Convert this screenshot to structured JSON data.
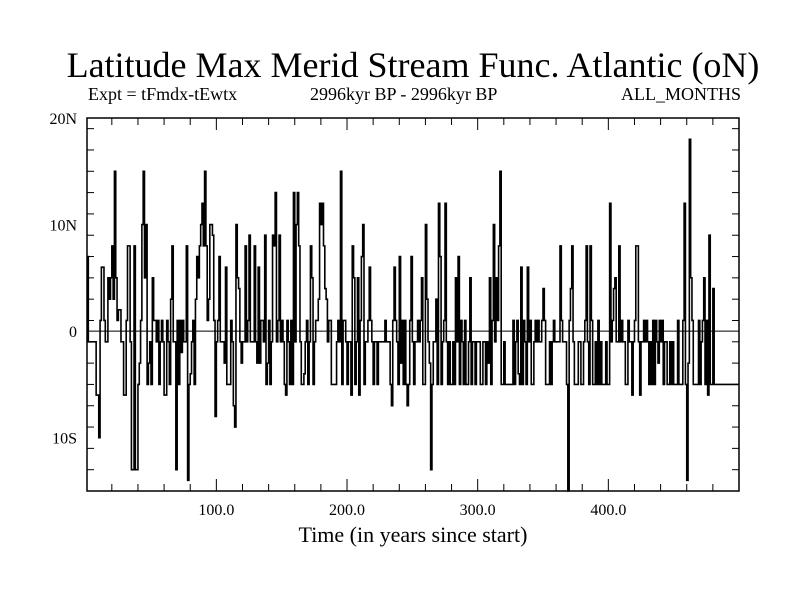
{
  "chart_data": {
    "type": "line",
    "title": "Latitude Max Merid Stream Func. Atlantic (oN)",
    "subtitle_left": "Expt = tFmdx-tEwtx",
    "subtitle_center": "2996kyr BP - 2996kyr BP",
    "subtitle_right": "ALL_MONTHS",
    "xlabel": "Time (in years since start)",
    "ylabel": "",
    "xlim": [
      1,
      500
    ],
    "ylim": [
      -15,
      20
    ],
    "x_ticks": [
      100,
      200,
      300,
      400
    ],
    "x_tick_labels": [
      "100.0",
      "200.0",
      "300.0",
      "400.0"
    ],
    "y_ticks": [
      -10,
      0,
      10,
      20
    ],
    "y_tick_labels": [
      "10S",
      "0",
      "10N",
      "20N"
    ],
    "zero_line": true,
    "grid": false,
    "step": 1,
    "series": [
      {
        "values": [
          7,
          -1,
          -1,
          -1,
          -1,
          -1,
          -1,
          -6,
          -6,
          -10,
          1,
          6,
          6,
          1,
          -1,
          -1,
          5,
          3,
          5,
          8,
          3,
          15,
          5,
          1,
          2,
          2,
          -1,
          -1,
          -6,
          -6,
          1,
          8,
          8,
          -1,
          -13,
          -13,
          8,
          -13,
          -13,
          -5,
          -3,
          1,
          10,
          15,
          5,
          10,
          -5,
          -3,
          -1,
          -5,
          5,
          1,
          1,
          -1,
          1,
          -5,
          -1,
          1,
          -1,
          -6,
          -6,
          1,
          -1,
          -5,
          3,
          8,
          -1,
          -1,
          -13,
          1,
          -5,
          1,
          -2,
          1,
          -1,
          -1,
          8,
          -14,
          -5,
          -4,
          -1,
          1,
          -5,
          3,
          7,
          5,
          8,
          10,
          12,
          8,
          15,
          8,
          1,
          3,
          10,
          10,
          9,
          1,
          -8,
          -1,
          1,
          7,
          -1,
          -1,
          -1,
          -3,
          6,
          -5,
          -5,
          -5,
          1,
          -1,
          -7,
          -9,
          10,
          5,
          4,
          -1,
          -3,
          -1,
          -1,
          8,
          -1,
          1,
          9,
          -1,
          -1,
          -1,
          8,
          -1,
          -3,
          6,
          -3,
          1,
          1,
          -1,
          9,
          -5,
          -3,
          1,
          -5,
          -1,
          9,
          8,
          13,
          -1,
          1,
          9,
          -1,
          1,
          -1,
          -5,
          -6,
          1,
          -1,
          -5,
          1,
          -5,
          13,
          -1,
          10,
          13,
          8,
          -1,
          -5,
          -5,
          -4,
          -1,
          1,
          -5,
          -1,
          8,
          5,
          -5,
          -1,
          1,
          1,
          3,
          12,
          10,
          12,
          8,
          4,
          3,
          -1,
          1,
          1,
          -5,
          -5,
          -5,
          -5,
          -1,
          1,
          -1,
          15,
          -5,
          1,
          1,
          -1,
          -5,
          -1,
          -1,
          -6,
          8,
          5,
          -5,
          -1,
          5,
          -6,
          1,
          7,
          10,
          -5,
          -1,
          -1,
          1,
          6,
          1,
          -1,
          -5,
          -1,
          -1,
          -5,
          -1,
          -1,
          -1,
          -1,
          -1,
          1,
          -1,
          -1,
          -1,
          -5,
          -7,
          1,
          6,
          1,
          -1,
          -5,
          7,
          -3,
          1,
          -5,
          1,
          -5,
          -7,
          -5,
          1,
          7,
          -1,
          -5,
          -1,
          -1,
          1,
          -1,
          1,
          5,
          -5,
          -5,
          10,
          3,
          -1,
          -3,
          -13,
          -5,
          -1,
          -1,
          3,
          -5,
          12,
          7,
          -5,
          -1,
          1,
          12,
          -1,
          -5,
          -1,
          -5,
          -5,
          -1,
          -5,
          5,
          -1,
          7,
          -5,
          1,
          -1,
          -5,
          1,
          -5,
          -5,
          -1,
          5,
          -5,
          -1,
          -1,
          -5,
          -1,
          -1,
          -1,
          -5,
          -5,
          -1,
          -1,
          -5,
          -1,
          -3,
          5,
          -5,
          1,
          10,
          -1,
          5,
          1,
          8,
          15,
          -5,
          -5,
          -1,
          -5,
          -5,
          -5,
          -5,
          -5,
          -5,
          1,
          -5,
          -1,
          1,
          -4,
          -5,
          6,
          -5,
          1,
          -1,
          -5,
          6,
          -1,
          1,
          -5,
          -5,
          -1,
          1,
          -1,
          1,
          -1,
          -1,
          1,
          4,
          1,
          -5,
          -5,
          -5,
          -1,
          -5,
          -1,
          1,
          -1,
          -1,
          -1,
          -1,
          8,
          1,
          -1,
          -1,
          -1,
          -5,
          -15,
          1,
          4,
          8,
          -1,
          -5,
          -5,
          -5,
          -1,
          -1,
          -5,
          -5,
          -1,
          1,
          8,
          -1,
          -5,
          8,
          1,
          -5,
          -5,
          -1,
          -5,
          1,
          -5,
          -1,
          -5,
          -5,
          -5,
          -1,
          -5,
          -5,
          12,
          -1,
          1,
          4,
          5,
          -1,
          -1,
          8,
          -1,
          1,
          -1,
          -1,
          -5,
          -5,
          1,
          -1,
          -1,
          -6,
          -1,
          1,
          8,
          8,
          -1,
          -6,
          -1,
          -1,
          1,
          -1,
          1,
          -1,
          -5,
          -1,
          -5,
          1,
          -5,
          1,
          -1,
          -3,
          1,
          -1,
          1,
          -5,
          -1,
          -1,
          -5,
          -5,
          -1,
          -5,
          -1,
          -5,
          -5,
          -5,
          1,
          -5,
          -5,
          -5,
          1,
          12,
          -5,
          -14,
          -3,
          18,
          5,
          1,
          -5,
          -5,
          -5,
          -5,
          1,
          -5,
          -1,
          1,
          5,
          -5,
          1,
          -6,
          9,
          -5,
          -5,
          4,
          -5,
          -5,
          -5,
          -5
        ]
      }
    ]
  }
}
